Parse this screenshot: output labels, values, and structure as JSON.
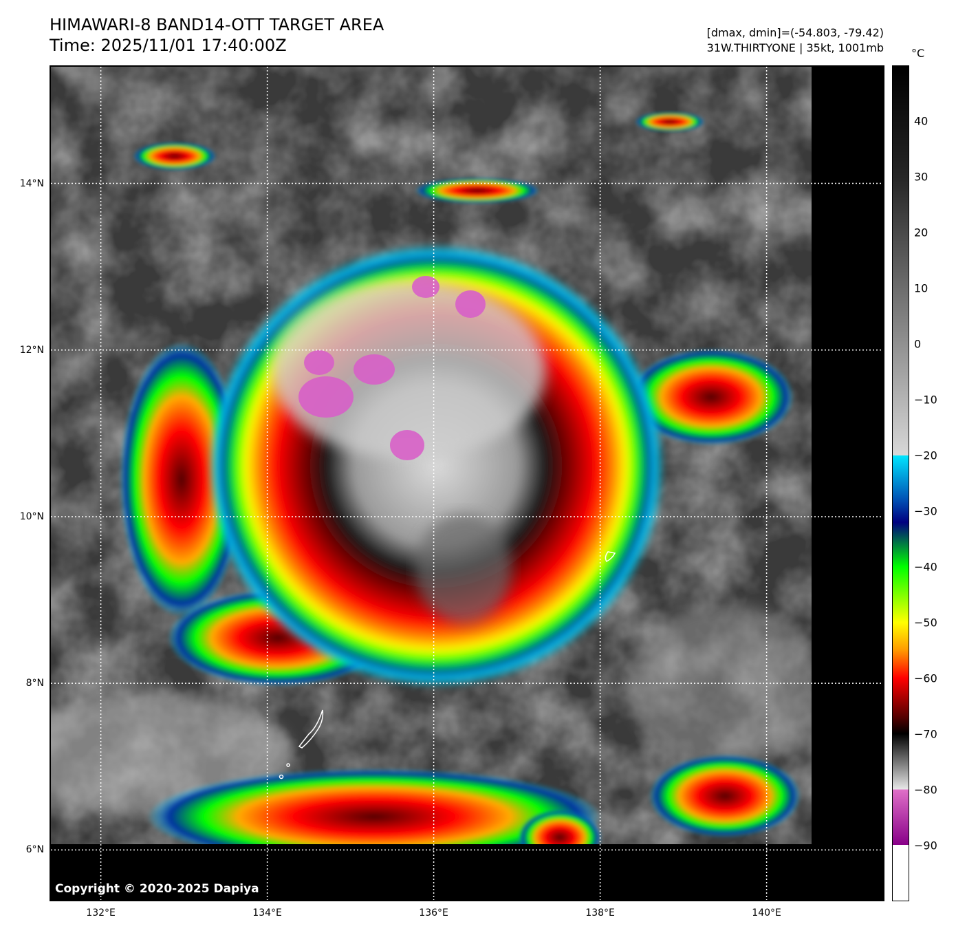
{
  "header": {
    "title_line1": "HIMAWARI-8 BAND14-OTT TARGET AREA",
    "title_line2": "Time: 2025/11/01 17:40:00Z",
    "info_line1": "[dmax, dmin]=(-54.803, -79.42)",
    "info_line2": "31W.THIRTYONE | 35kt, 1001mb"
  },
  "map": {
    "copyright": "Copyright © 2020-2025 Dapiya",
    "lat_range": [
      5.4,
      15.4
    ],
    "lon_range": [
      131.4,
      141.4
    ],
    "lat_labels": [
      {
        "value": 14,
        "label": "14°N"
      },
      {
        "value": 12,
        "label": "12°N"
      },
      {
        "value": 10,
        "label": "10°N"
      },
      {
        "value": 8,
        "label": "8°N"
      },
      {
        "value": 6,
        "label": "6°N"
      }
    ],
    "lon_labels": [
      {
        "value": 132,
        "label": "132°E"
      },
      {
        "value": 134,
        "label": "134°E"
      },
      {
        "value": 136,
        "label": "136°E"
      },
      {
        "value": 138,
        "label": "138°E"
      },
      {
        "value": 140,
        "label": "140°E"
      }
    ],
    "storm_center": {
      "lat": 10.1,
      "lon": 136.4
    }
  },
  "colorbar": {
    "unit": "°C",
    "range": [
      -100,
      50
    ],
    "ticks": [
      {
        "value": 40,
        "label": "40"
      },
      {
        "value": 30,
        "label": "30"
      },
      {
        "value": 20,
        "label": "20"
      },
      {
        "value": 10,
        "label": "10"
      },
      {
        "value": 0,
        "label": "0"
      },
      {
        "value": -10,
        "label": "−10"
      },
      {
        "value": -20,
        "label": "−20"
      },
      {
        "value": -30,
        "label": "−30"
      },
      {
        "value": -40,
        "label": "−40"
      },
      {
        "value": -50,
        "label": "−50"
      },
      {
        "value": -60,
        "label": "−60"
      },
      {
        "value": -70,
        "label": "−70"
      },
      {
        "value": -80,
        "label": "−80"
      },
      {
        "value": -90,
        "label": "−90"
      }
    ],
    "stops": [
      {
        "value": 50,
        "color": "#000000"
      },
      {
        "value": 30,
        "color": "#262626"
      },
      {
        "value": -20,
        "color": "#d8d8d8"
      },
      {
        "value": -20.01,
        "color": "#00e5ff"
      },
      {
        "value": -28,
        "color": "#0050b4"
      },
      {
        "value": -32,
        "color": "#000080"
      },
      {
        "value": -40,
        "color": "#00ff00"
      },
      {
        "value": -50,
        "color": "#ffff00"
      },
      {
        "value": -55,
        "color": "#ff9900"
      },
      {
        "value": -60,
        "color": "#ff0000"
      },
      {
        "value": -67,
        "color": "#550000"
      },
      {
        "value": -70,
        "color": "#000000"
      },
      {
        "value": -80,
        "color": "#e8e8e8"
      },
      {
        "value": -80.01,
        "color": "#e070c8"
      },
      {
        "value": -90,
        "color": "#880088"
      },
      {
        "value": -90.01,
        "color": "#ffffff"
      },
      {
        "value": -100,
        "color": "#ffffff"
      }
    ]
  }
}
